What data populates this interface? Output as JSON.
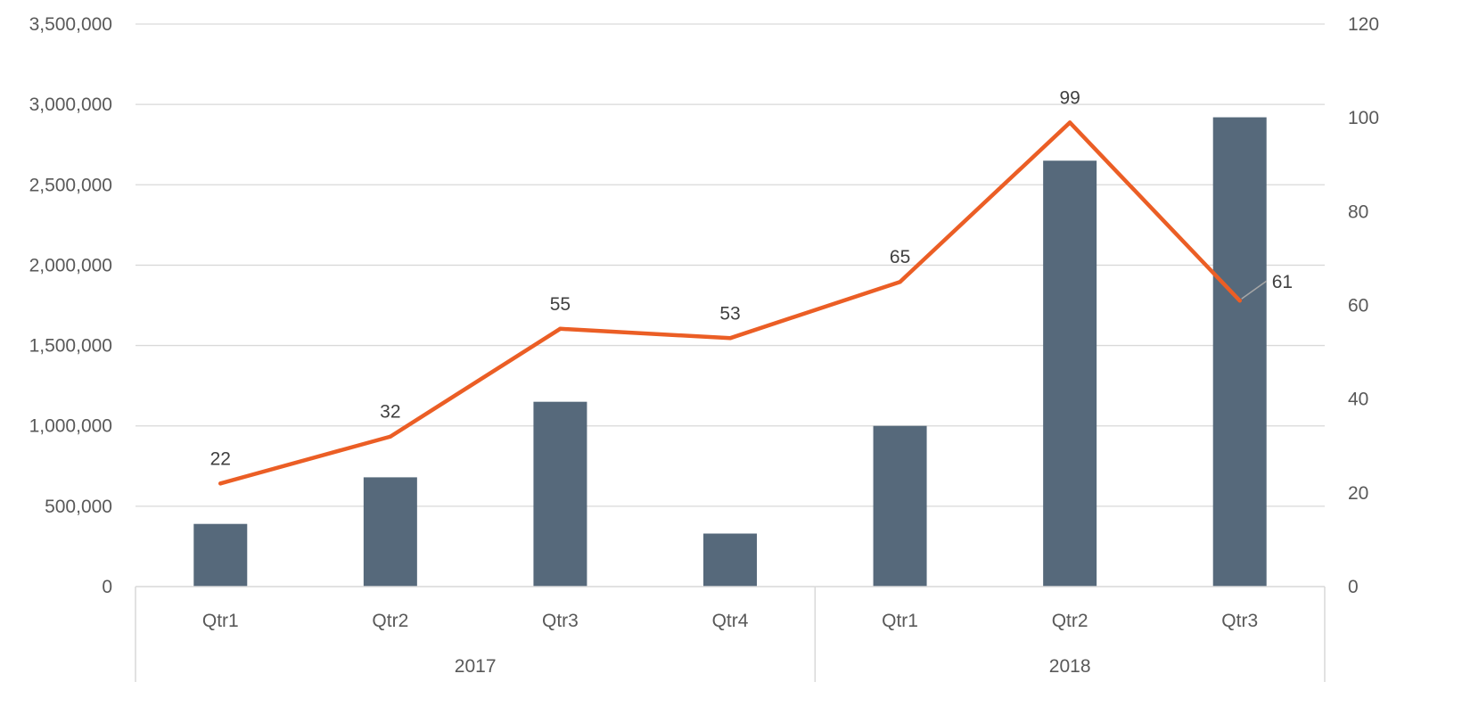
{
  "chart_data": {
    "type": "bar",
    "groups": [
      {
        "label": "2017",
        "categories": [
          "Qtr1",
          "Qtr2",
          "Qtr3",
          "Qtr4"
        ]
      },
      {
        "label": "2018",
        "categories": [
          "Qtr1",
          "Qtr2",
          "Qtr3"
        ]
      }
    ],
    "categories": [
      "Qtr1",
      "Qtr2",
      "Qtr3",
      "Qtr4",
      "Qtr1",
      "Qtr2",
      "Qtr3"
    ],
    "series": [
      {
        "type": "bar",
        "axis": "left",
        "color": "#56697B",
        "values": [
          390000,
          680000,
          1150000,
          330000,
          1000000,
          2650000,
          2920000
        ]
      },
      {
        "type": "line",
        "axis": "right",
        "color": "#EB5E25",
        "values": [
          22,
          32,
          55,
          53,
          65,
          99,
          61
        ],
        "data_labels": [
          "22",
          "32",
          "55",
          "53",
          "65",
          "99",
          "61"
        ]
      }
    ],
    "y_left": {
      "min": 0,
      "max": 3500000,
      "step": 500000,
      "ticks": [
        "0",
        "500,000",
        "1,000,000",
        "1,500,000",
        "2,000,000",
        "2,500,000",
        "3,000,000",
        "3,500,000"
      ]
    },
    "y_right": {
      "min": 0,
      "max": 120,
      "step": 20,
      "ticks": [
        "0",
        "20",
        "40",
        "60",
        "80",
        "100",
        "120"
      ]
    },
    "grid": true,
    "legend": "none",
    "title": "",
    "xlabel": "",
    "ylabel": ""
  }
}
